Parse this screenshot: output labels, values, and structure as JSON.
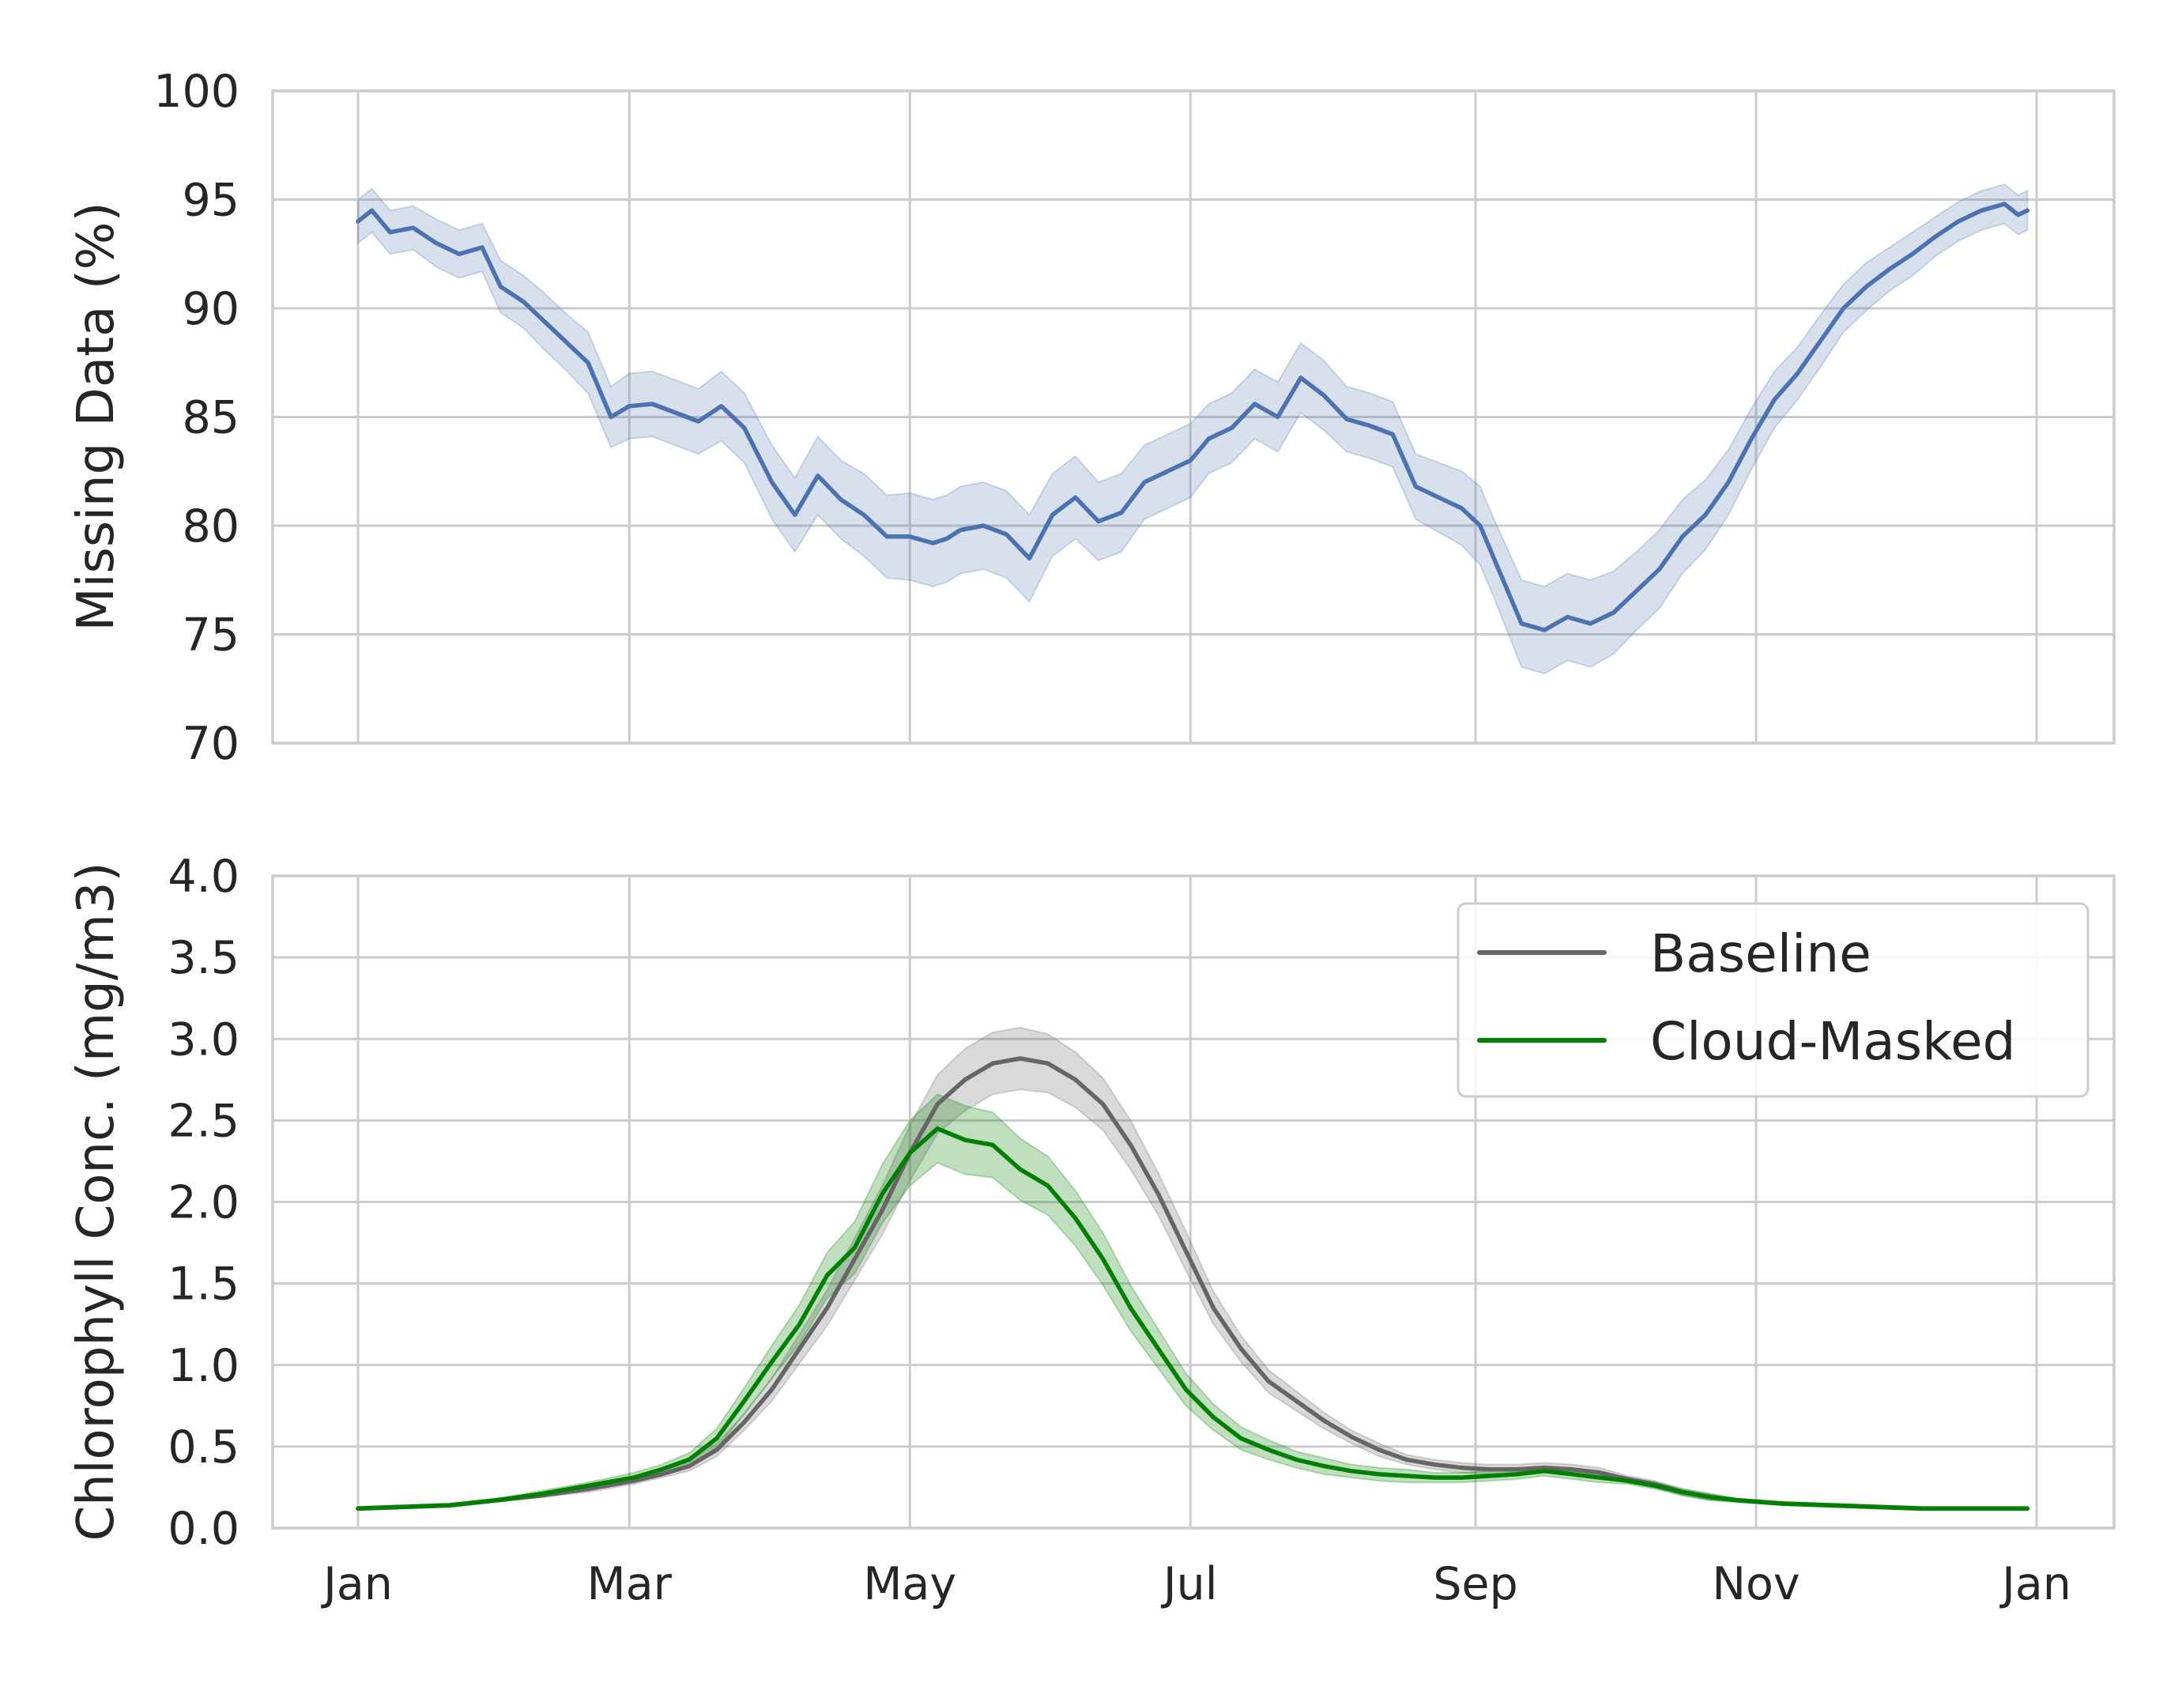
{
  "chart_data": [
    {
      "type": "line",
      "ylabel": "Missing Data (%)",
      "xlabel": "",
      "ylim": [
        70,
        100
      ],
      "yticks": [
        "70",
        "75",
        "80",
        "85",
        "90",
        "95",
        "100"
      ],
      "x_tick_labels": [
        "Jan",
        "Mar",
        "May",
        "Jul",
        "Sep",
        "Nov",
        "Jan"
      ],
      "grid": true,
      "color": "#4c72b0",
      "x_axis_unit": "day of year (Jan 1 to Jan 1 of next year)",
      "series": [
        {
          "name": "",
          "x": [
            0,
            3,
            7,
            12,
            17,
            22,
            27,
            31,
            36,
            40,
            45,
            50,
            55,
            59,
            64,
            69,
            74,
            79,
            84,
            90,
            95,
            100,
            105,
            110,
            115,
            120,
            125,
            128,
            131,
            136,
            141,
            146,
            151,
            156,
            161,
            166,
            171,
            176,
            181,
            185,
            190,
            195,
            200,
            205,
            210,
            215,
            220,
            225,
            230,
            235,
            240,
            244,
            247,
            250,
            253,
            258,
            263,
            268,
            273,
            278,
            283,
            288,
            293,
            298,
            303,
            308,
            313,
            318,
            323,
            328,
            333,
            338,
            343,
            348,
            353,
            358,
            361,
            363
          ],
          "y": [
            94.0,
            94.5,
            93.5,
            93.7,
            93.0,
            92.5,
            92.8,
            91.0,
            90.3,
            89.5,
            88.5,
            87.5,
            85.0,
            85.5,
            85.6,
            85.2,
            84.8,
            85.5,
            84.5,
            82.0,
            80.5,
            82.3,
            81.2,
            80.5,
            79.5,
            79.5,
            79.2,
            79.4,
            79.8,
            80.0,
            79.6,
            78.5,
            80.5,
            81.3,
            80.2,
            80.6,
            82.0,
            82.5,
            83.0,
            84.0,
            84.5,
            85.6,
            85.0,
            86.8,
            86.0,
            84.9,
            84.6,
            84.2,
            81.8,
            81.3,
            80.8,
            80.0,
            78.5,
            77.0,
            75.5,
            75.2,
            75.8,
            75.5,
            76.0,
            77.0,
            78.0,
            79.5,
            80.5,
            82.0,
            84.0,
            85.8,
            87.0,
            88.5,
            90.0,
            91.0,
            91.8,
            92.5,
            93.3,
            94.0,
            94.5,
            94.8,
            94.3,
            94.5
          ],
          "band": [
            1.0,
            1.0,
            1.0,
            1.0,
            1.1,
            1.1,
            1.1,
            1.2,
            1.2,
            1.3,
            1.3,
            1.4,
            1.4,
            1.5,
            1.5,
            1.5,
            1.5,
            1.6,
            1.6,
            1.7,
            1.7,
            1.8,
            1.8,
            1.9,
            1.9,
            2.0,
            2.0,
            2.0,
            2.0,
            2.0,
            2.0,
            2.0,
            1.9,
            1.9,
            1.8,
            1.8,
            1.7,
            1.7,
            1.7,
            1.6,
            1.6,
            1.6,
            1.6,
            1.6,
            1.6,
            1.5,
            1.5,
            1.5,
            1.5,
            1.6,
            1.7,
            1.8,
            1.8,
            1.9,
            2.0,
            2.0,
            2.0,
            2.0,
            1.9,
            1.8,
            1.8,
            1.7,
            1.6,
            1.5,
            1.4,
            1.3,
            1.2,
            1.2,
            1.1,
            1.1,
            1.0,
            1.0,
            0.9,
            0.9,
            0.9,
            0.9,
            0.9,
            0.9
          ]
        }
      ]
    },
    {
      "type": "line",
      "ylabel": "Chlorophyll Conc. (mg/m3)",
      "xlabel": "",
      "ylim": [
        0,
        4
      ],
      "yticks": [
        "0.0",
        "0.5",
        "1.0",
        "1.5",
        "2.0",
        "2.5",
        "3.0",
        "3.5",
        "4.0"
      ],
      "x_tick_labels": [
        "Jan",
        "Mar",
        "May",
        "Jul",
        "Sep",
        "Nov",
        "Jan"
      ],
      "grid": true,
      "legend": "top-right",
      "x_axis_unit": "day of year (Jan 1 to Jan 1 of next year)",
      "series": [
        {
          "name": "Baseline",
          "color": "#666666",
          "x": [
            0,
            10,
            20,
            30,
            40,
            50,
            60,
            66,
            72,
            78,
            84,
            90,
            96,
            102,
            108,
            114,
            120,
            126,
            132,
            138,
            144,
            150,
            156,
            162,
            168,
            174,
            180,
            186,
            192,
            198,
            204,
            210,
            216,
            222,
            228,
            234,
            240,
            246,
            252,
            258,
            264,
            270,
            276,
            282,
            288,
            294,
            300,
            310,
            320,
            330,
            340,
            350,
            363
          ],
          "y": [
            0.12,
            0.13,
            0.14,
            0.17,
            0.2,
            0.24,
            0.29,
            0.33,
            0.38,
            0.48,
            0.65,
            0.85,
            1.1,
            1.35,
            1.65,
            1.95,
            2.3,
            2.6,
            2.75,
            2.85,
            2.88,
            2.85,
            2.75,
            2.6,
            2.35,
            2.05,
            1.7,
            1.35,
            1.1,
            0.9,
            0.78,
            0.66,
            0.56,
            0.48,
            0.42,
            0.39,
            0.37,
            0.36,
            0.36,
            0.37,
            0.36,
            0.34,
            0.3,
            0.27,
            0.22,
            0.19,
            0.17,
            0.15,
            0.14,
            0.13,
            0.12,
            0.12,
            0.12
          ],
          "band": [
            0.01,
            0.01,
            0.01,
            0.01,
            0.01,
            0.02,
            0.02,
            0.02,
            0.03,
            0.04,
            0.05,
            0.07,
            0.09,
            0.11,
            0.13,
            0.15,
            0.17,
            0.18,
            0.19,
            0.19,
            0.19,
            0.18,
            0.17,
            0.16,
            0.15,
            0.13,
            0.12,
            0.1,
            0.08,
            0.07,
            0.06,
            0.05,
            0.04,
            0.04,
            0.03,
            0.03,
            0.03,
            0.03,
            0.03,
            0.03,
            0.03,
            0.03,
            0.02,
            0.02,
            0.02,
            0.02,
            0.01,
            0.01,
            0.01,
            0.01,
            0.01,
            0.01,
            0.01
          ]
        },
        {
          "name": "Cloud-Masked",
          "color": "#008000",
          "x": [
            0,
            10,
            20,
            30,
            40,
            50,
            60,
            66,
            72,
            78,
            84,
            90,
            96,
            102,
            108,
            114,
            120,
            126,
            132,
            138,
            144,
            150,
            156,
            162,
            168,
            174,
            180,
            186,
            192,
            198,
            204,
            210,
            216,
            222,
            228,
            234,
            240,
            246,
            252,
            258,
            264,
            270,
            276,
            282,
            288,
            294,
            300,
            310,
            320,
            330,
            340,
            350,
            363
          ],
          "y": [
            0.12,
            0.13,
            0.14,
            0.17,
            0.21,
            0.26,
            0.31,
            0.36,
            0.42,
            0.55,
            0.78,
            1.02,
            1.25,
            1.55,
            1.72,
            2.05,
            2.3,
            2.45,
            2.38,
            2.35,
            2.2,
            2.1,
            1.9,
            1.65,
            1.35,
            1.1,
            0.85,
            0.68,
            0.55,
            0.48,
            0.42,
            0.38,
            0.35,
            0.33,
            0.32,
            0.31,
            0.31,
            0.32,
            0.33,
            0.35,
            0.33,
            0.31,
            0.29,
            0.26,
            0.22,
            0.19,
            0.17,
            0.15,
            0.14,
            0.13,
            0.12,
            0.12,
            0.12
          ],
          "band": [
            0.01,
            0.01,
            0.01,
            0.01,
            0.02,
            0.02,
            0.03,
            0.03,
            0.04,
            0.06,
            0.08,
            0.1,
            0.12,
            0.14,
            0.16,
            0.18,
            0.2,
            0.21,
            0.21,
            0.2,
            0.19,
            0.18,
            0.17,
            0.16,
            0.14,
            0.12,
            0.1,
            0.08,
            0.07,
            0.06,
            0.05,
            0.05,
            0.04,
            0.04,
            0.04,
            0.03,
            0.03,
            0.03,
            0.03,
            0.03,
            0.03,
            0.03,
            0.02,
            0.02,
            0.02,
            0.02,
            0.01,
            0.01,
            0.01,
            0.01,
            0.01,
            0.01,
            0.01
          ]
        }
      ]
    }
  ]
}
